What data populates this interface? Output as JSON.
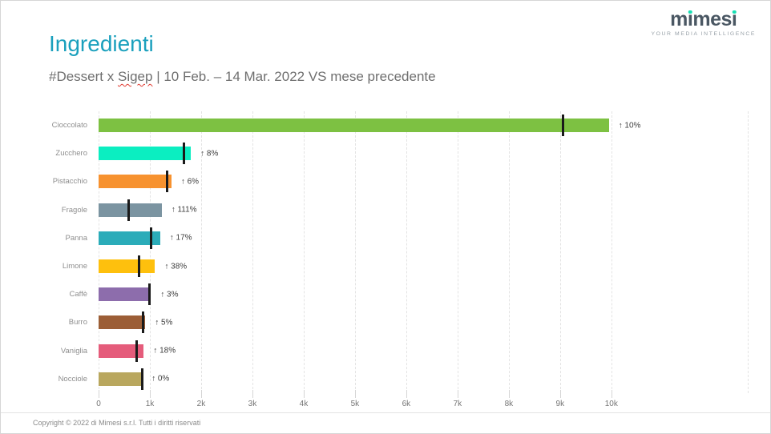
{
  "header": {
    "title": "Ingredienti",
    "subtitle": {
      "part1": "#Dessert x ",
      "highlight": "Sigep",
      "part2": " | 10 Feb. – 14 Mar. 2022 VS mese precedente"
    }
  },
  "logo": {
    "text": "mimesi",
    "tagline": "YOUR MEDIA INTELLIGENCE",
    "text_color": "#4A5763",
    "dot_color": "#16E0B4"
  },
  "chart_data": {
    "type": "bar",
    "orientation": "horizontal",
    "title": "Ingredienti",
    "categories": [
      "Cioccolato",
      "Zucchero",
      "Pistacchio",
      "Fragole",
      "Panna",
      "Limone",
      "Caffè",
      "Burro",
      "Vaniglia",
      "Nocciole"
    ],
    "series": [
      {
        "name": "10 Feb. – 14 Mar. 2022",
        "values": [
          9950,
          1800,
          1420,
          1230,
          1200,
          1100,
          1020,
          910,
          880,
          845
        ]
      },
      {
        "name": "mese precedente",
        "values": [
          9050,
          1670,
          1340,
          580,
          1030,
          795,
          990,
          865,
          745,
          845
        ]
      }
    ],
    "change_labels": [
      "↑ 10%",
      "↑ 8%",
      "↑ 6%",
      "↑ 111%",
      "↑ 17%",
      "↑ 38%",
      "↑ 3%",
      "↑ 5%",
      "↑ 18%",
      "↑ 0%"
    ],
    "bar_colors": [
      "#7DC142",
      "#0BEEC1",
      "#F7922F",
      "#7B94A1",
      "#2BACB9",
      "#FEC00D",
      "#8D6DAC",
      "#9C5E36",
      "#E55C7B",
      "#B9A75E"
    ],
    "marker_color": "#1A1A1A",
    "x_ticks": [
      0,
      1000,
      2000,
      3000,
      4000,
      5000,
      6000,
      7000,
      8000,
      9000,
      10000
    ],
    "x_tick_labels": [
      "0",
      "1k",
      "2k",
      "3k",
      "4k",
      "5k",
      "6k",
      "7k",
      "8k",
      "9k",
      "10k"
    ],
    "xlim": [
      0,
      12660
    ],
    "grid": "vertical-dashed",
    "legend": "none"
  },
  "footer": {
    "copyright": "Copyright © 2022 di Mimesi s.r.l. Tutti i diritti riservati"
  }
}
